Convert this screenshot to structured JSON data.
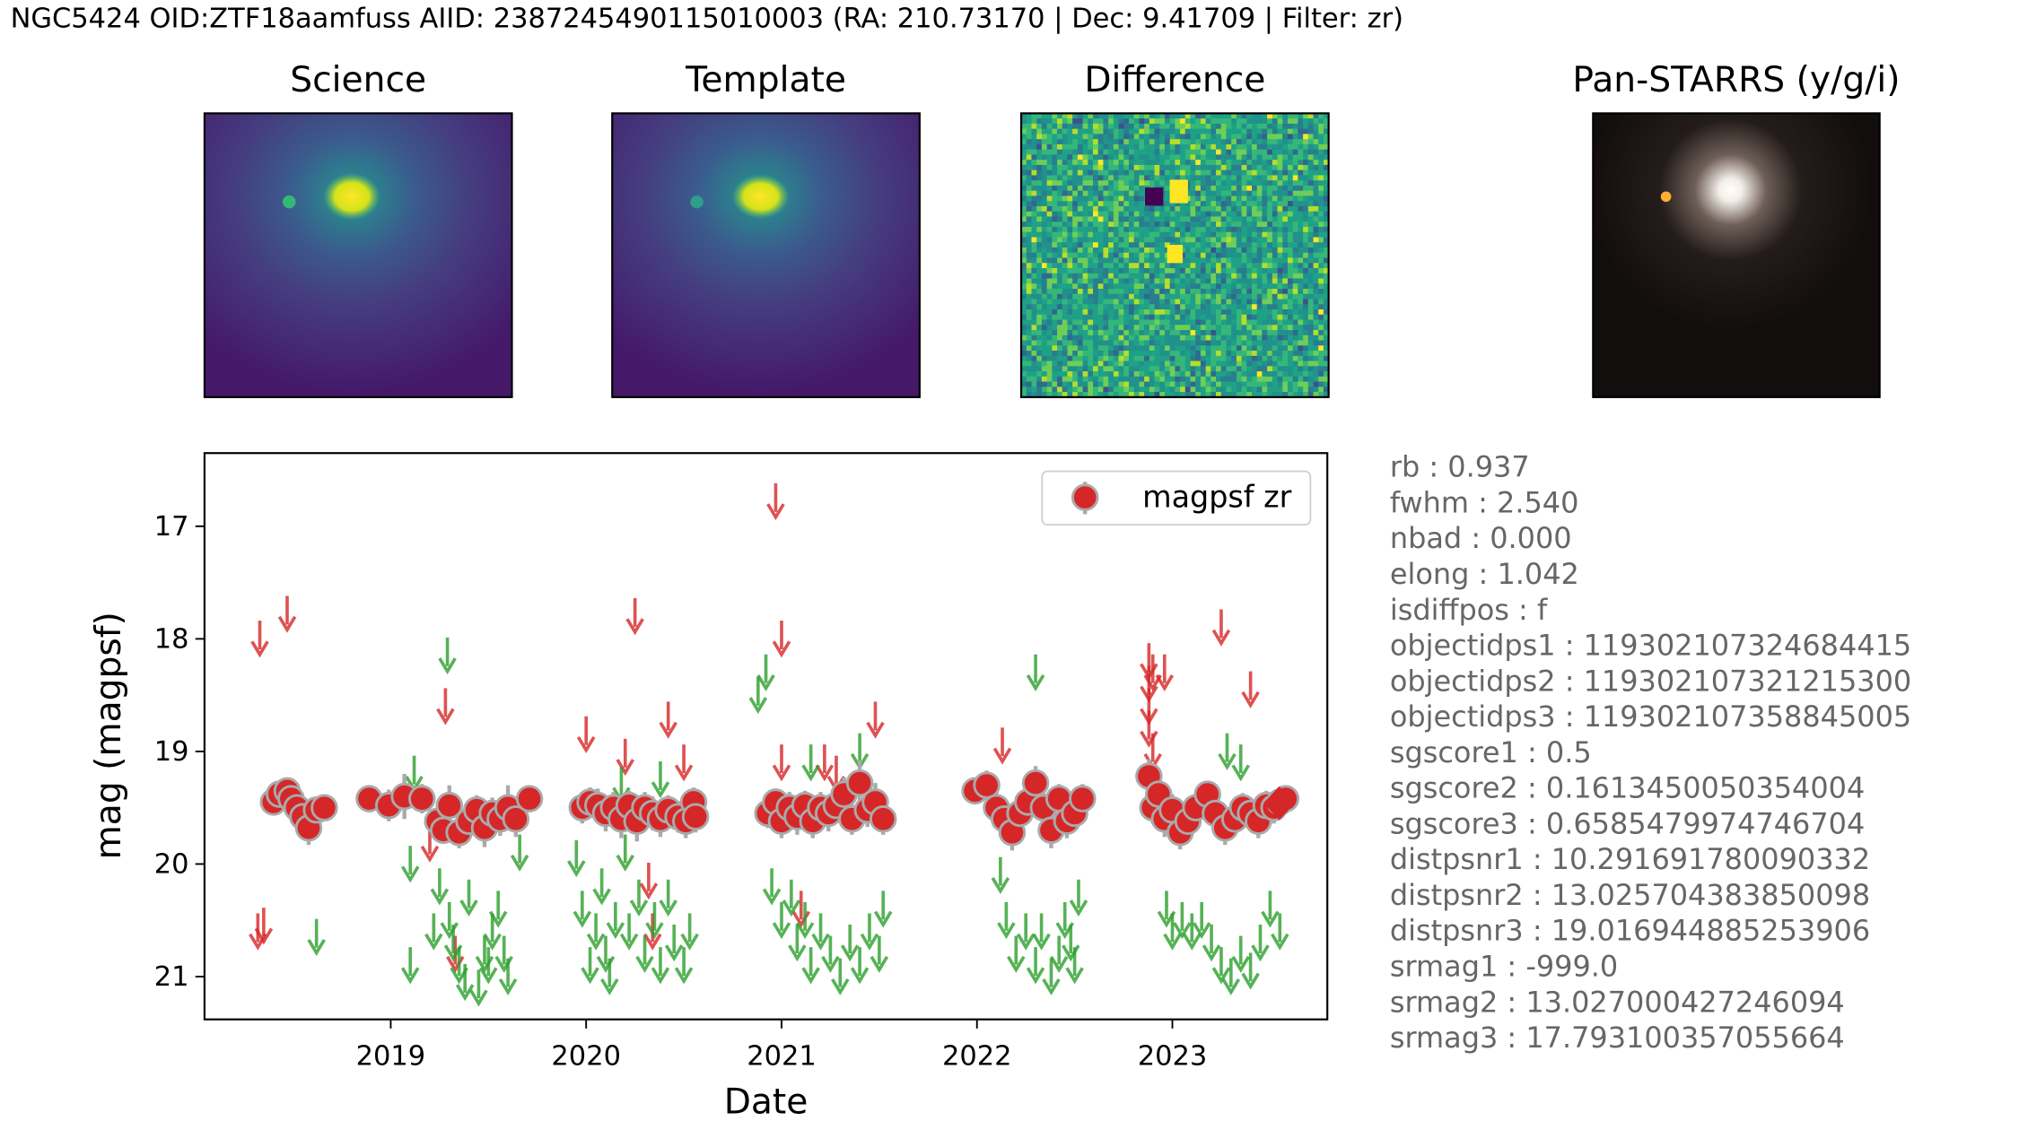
{
  "chart_data": {
    "type": "scatter",
    "title": "NGC5424 OID:ZTF18aamfuss AIID: 2387245490115010003 (RA: 210.73170 | Dec: 9.41709 | Filter: zr)",
    "panels": [
      "Science",
      "Template",
      "Difference",
      "Pan-STARRS (y/g/i)"
    ],
    "x_label": "Date",
    "y_label": "mag (magpsf)",
    "xlim": [
      2018.047,
      2023.793
    ],
    "xticks": [
      2019,
      2020,
      2021,
      2022,
      2023
    ],
    "ylim": [
      21.38,
      16.35
    ],
    "yticks": [
      17,
      18,
      19,
      20,
      21
    ],
    "legend": "upper right",
    "series": [
      {
        "name": "magpsf zr",
        "color": "#d62728",
        "edge_color": "#aaaaaa",
        "x": [
          2018.4,
          2018.43,
          2018.47,
          2018.49,
          2018.52,
          2018.55,
          2018.58,
          2018.62,
          2018.66,
          2018.89,
          2018.99,
          2019.07,
          2019.16,
          2019.24,
          2019.27,
          2019.3,
          2019.35,
          2019.4,
          2019.44,
          2019.48,
          2019.52,
          2019.56,
          2019.6,
          2019.64,
          2019.71,
          2019.98,
          2020.02,
          2020.06,
          2020.1,
          2020.14,
          2020.18,
          2020.22,
          2020.26,
          2020.3,
          2020.34,
          2020.38,
          2020.42,
          2020.47,
          2020.51,
          2020.55,
          2020.56,
          2020.93,
          2020.97,
          2021.0,
          2021.04,
          2021.08,
          2021.12,
          2021.16,
          2021.2,
          2021.24,
          2021.28,
          2021.32,
          2021.36,
          2021.4,
          2021.44,
          2021.48,
          2021.52,
          2021.99,
          2022.05,
          2022.1,
          2022.14,
          2022.18,
          2022.22,
          2022.26,
          2022.3,
          2022.34,
          2022.38,
          2022.42,
          2022.46,
          2022.5,
          2022.54,
          2022.88,
          2022.9,
          2022.93,
          2022.96,
          2023.0,
          2023.04,
          2023.08,
          2023.12,
          2023.18,
          2023.22,
          2023.27,
          2023.32,
          2023.36,
          2023.4,
          2023.44,
          2023.48,
          2023.52,
          2023.55,
          2023.58
        ],
        "values": [
          19.45,
          19.38,
          19.35,
          19.42,
          19.5,
          19.58,
          19.68,
          19.52,
          19.5,
          19.42,
          19.48,
          19.4,
          19.42,
          19.62,
          19.7,
          19.48,
          19.72,
          19.62,
          19.52,
          19.68,
          19.55,
          19.6,
          19.5,
          19.6,
          19.42,
          19.5,
          19.45,
          19.48,
          19.55,
          19.5,
          19.6,
          19.48,
          19.62,
          19.5,
          19.55,
          19.6,
          19.52,
          19.58,
          19.62,
          19.45,
          19.58,
          19.55,
          19.45,
          19.62,
          19.5,
          19.58,
          19.48,
          19.62,
          19.5,
          19.55,
          19.48,
          19.38,
          19.6,
          19.28,
          19.52,
          19.45,
          19.6,
          19.35,
          19.3,
          19.5,
          19.6,
          19.72,
          19.55,
          19.45,
          19.28,
          19.5,
          19.7,
          19.42,
          19.62,
          19.55,
          19.42,
          19.22,
          19.5,
          19.38,
          19.6,
          19.52,
          19.72,
          19.62,
          19.5,
          19.38,
          19.55,
          19.68,
          19.6,
          19.5,
          19.55,
          19.62,
          19.48,
          19.5,
          19.45,
          19.42
        ],
        "errors": [
          0.12,
          0.1,
          0.11,
          0.13,
          0.12,
          0.14,
          0.15,
          0.12,
          0.11,
          0.12,
          0.14,
          0.2,
          0.13,
          0.15,
          0.12,
          0.18,
          0.14,
          0.16,
          0.13,
          0.17,
          0.14,
          0.15,
          0.2,
          0.16,
          0.12,
          0.14,
          0.13,
          0.15,
          0.16,
          0.14,
          0.17,
          0.13,
          0.18,
          0.14,
          0.15,
          0.16,
          0.13,
          0.14,
          0.15,
          0.13,
          0.14,
          0.13,
          0.12,
          0.15,
          0.14,
          0.16,
          0.13,
          0.15,
          0.14,
          0.16,
          0.13,
          0.15,
          0.14,
          0.2,
          0.15,
          0.17,
          0.14,
          0.12,
          0.13,
          0.14,
          0.15,
          0.16,
          0.14,
          0.13,
          0.15,
          0.14,
          0.16,
          0.13,
          0.15,
          0.14,
          0.13,
          0.15,
          0.14,
          0.13,
          0.16,
          0.14,
          0.15,
          0.14,
          0.13,
          0.12,
          0.14,
          0.15,
          0.14,
          0.13,
          0.14,
          0.15,
          0.13,
          0.14,
          0.13,
          0.12
        ]
      }
    ],
    "latest": {
      "x": 2023.547,
      "y": 19.46,
      "color": "#d62728"
    },
    "upper_limits": [
      {
        "color": "#d62728",
        "x": [
          2018.33,
          2018.47,
          2018.32,
          2018.35,
          2019.2,
          2019.28,
          2019.33,
          2020.0,
          2020.2,
          2020.25,
          2020.32,
          2020.34,
          2020.42,
          2020.5,
          2020.97,
          2021.0,
          2021.0,
          2021.1,
          2021.22,
          2021.28,
          2021.48,
          2022.13,
          2022.88,
          2022.88,
          2022.88,
          2022.88,
          2022.9,
          2022.9,
          2022.96,
          2023.25,
          2023.4
        ],
        "values": [
          18.0,
          17.78,
          20.6,
          20.55,
          19.82,
          18.6,
          20.8,
          18.85,
          19.05,
          17.8,
          20.15,
          20.6,
          18.72,
          19.1,
          16.78,
          18.0,
          19.1,
          20.4,
          19.1,
          19.2,
          18.72,
          18.95,
          18.2,
          18.4,
          18.6,
          18.8,
          19.0,
          18.3,
          18.3,
          17.9,
          18.45
        ]
      },
      {
        "color": "#2ca02c",
        "x": [
          2018.62,
          2019.12,
          2019.1,
          2019.1,
          2019.22,
          2019.25,
          2019.29,
          2019.3,
          2019.32,
          2019.35,
          2019.38,
          2019.4,
          2019.45,
          2019.48,
          2019.5,
          2019.52,
          2019.55,
          2019.58,
          2019.6,
          2019.66,
          2019.95,
          2019.98,
          2020.02,
          2020.05,
          2020.08,
          2020.1,
          2020.12,
          2020.15,
          2020.2,
          2020.22,
          2020.27,
          2020.3,
          2020.35,
          2020.38,
          2020.42,
          2020.45,
          2020.5,
          2020.53,
          2020.18,
          2020.38,
          2020.88,
          2020.92,
          2020.95,
          2021.0,
          2021.05,
          2021.08,
          2021.12,
          2021.15,
          2021.2,
          2021.25,
          2021.3,
          2021.35,
          2021.4,
          2021.45,
          2021.5,
          2021.52,
          2021.15,
          2021.4,
          2022.12,
          2022.15,
          2022.2,
          2022.25,
          2022.3,
          2022.33,
          2022.38,
          2022.42,
          2022.45,
          2022.48,
          2022.5,
          2022.52,
          2022.3,
          2022.97,
          2023.0,
          2023.05,
          2023.1,
          2023.15,
          2023.2,
          2023.25,
          2023.3,
          2023.35,
          2023.4,
          2023.45,
          2023.5,
          2023.55,
          2023.35,
          2023.28
        ],
        "values": [
          20.65,
          19.2,
          20.9,
          20.0,
          20.6,
          20.2,
          18.15,
          20.5,
          20.7,
          20.9,
          21.05,
          20.3,
          21.1,
          20.8,
          20.9,
          20.6,
          20.4,
          20.8,
          21.0,
          19.9,
          19.95,
          20.4,
          20.9,
          20.6,
          20.2,
          20.8,
          21.0,
          20.5,
          19.9,
          20.6,
          20.3,
          20.8,
          20.5,
          20.9,
          20.3,
          20.7,
          20.9,
          20.6,
          19.3,
          19.25,
          18.5,
          18.3,
          20.2,
          20.5,
          20.3,
          20.7,
          20.5,
          20.9,
          20.6,
          20.8,
          21.0,
          20.7,
          20.9,
          20.6,
          20.8,
          20.4,
          19.1,
          19.0,
          20.1,
          20.5,
          20.8,
          20.6,
          20.9,
          20.6,
          21.0,
          20.8,
          20.5,
          20.7,
          20.9,
          20.3,
          18.3,
          20.4,
          20.6,
          20.5,
          20.6,
          20.5,
          20.7,
          20.9,
          21.0,
          20.8,
          20.95,
          20.7,
          20.4,
          20.6,
          19.1,
          19.0
        ]
      }
    ],
    "info_lines": [
      "rb : 0.937",
      "fwhm : 2.540",
      "nbad : 0.000",
      "elong : 1.042",
      "isdiffpos : f",
      "objectidps1 : 119302107324684415",
      "objectidps2 : 119302107321215300",
      "objectidps3 : 119302107358845005",
      "sgscore1 : 0.5",
      "sgscore2 : 0.1613450050354004",
      "sgscore3 : 0.6585479974746704",
      "distpsnr1 : 10.291691780090332",
      "distpsnr2 : 13.025704383850098",
      "distpsnr3 : 19.016944885253906",
      "srmag1 : -999.0",
      "srmag2 : 13.027000427246094",
      "srmag3 : 17.793100357055664"
    ]
  }
}
